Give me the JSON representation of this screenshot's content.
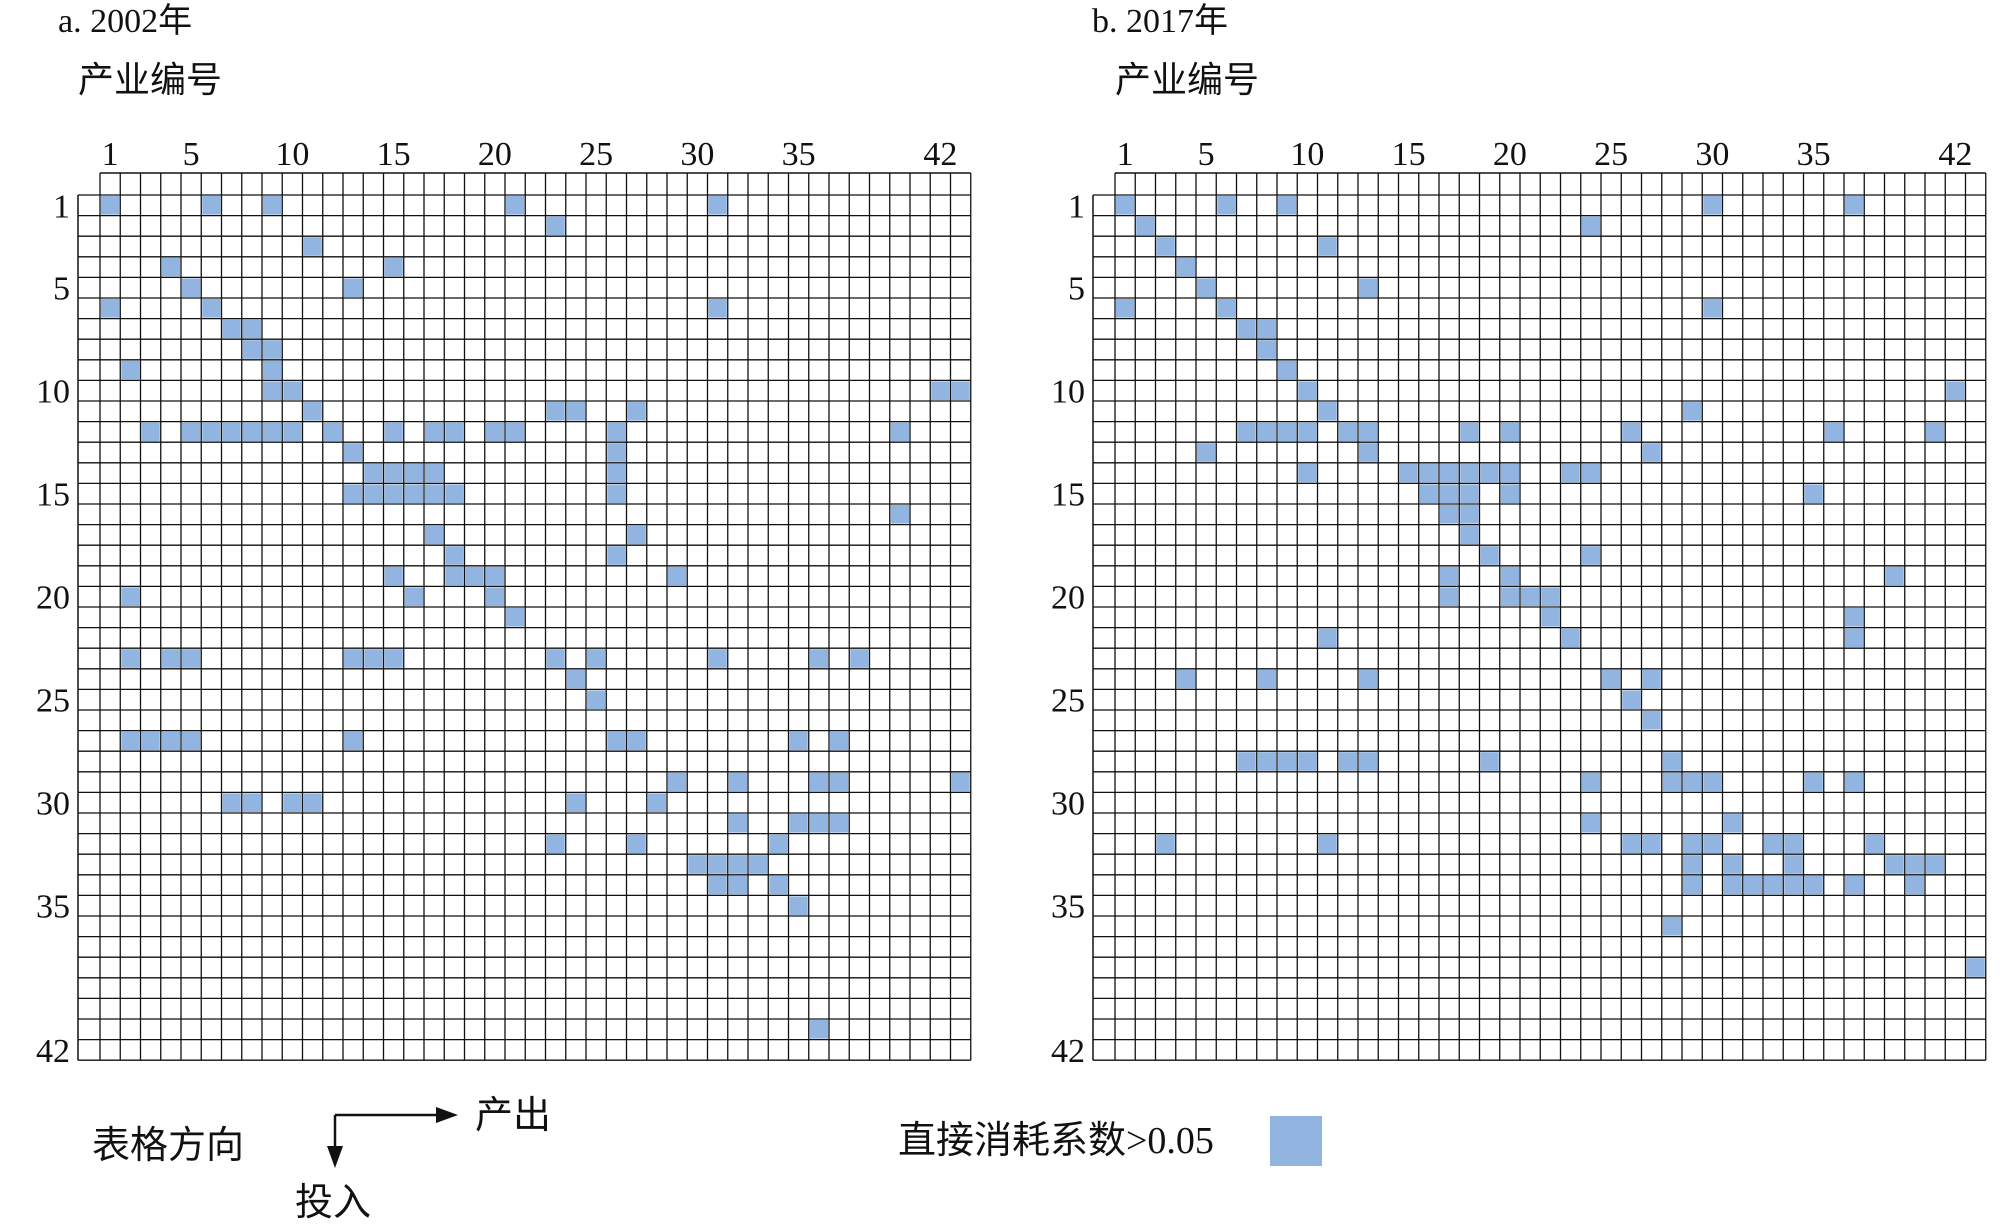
{
  "colors": {
    "filled": "#92b4e0",
    "grid": "#111111",
    "background": "#ffffff"
  },
  "legend": {
    "direction_label": "表格方向",
    "output_label": "产出",
    "input_label": "投入",
    "threshold_label": "直接消耗系数>0.05"
  },
  "chart_data": [
    {
      "type": "heatmap",
      "title": "a. 2002年",
      "axis_label": "产业编号",
      "size": 42,
      "x_tick_labels": [
        1,
        5,
        10,
        15,
        20,
        25,
        30,
        35,
        42
      ],
      "y_tick_labels": [
        1,
        5,
        10,
        15,
        20,
        25,
        30,
        35,
        42
      ],
      "cells": [
        [
          1,
          1
        ],
        [
          1,
          6
        ],
        [
          1,
          9
        ],
        [
          1,
          21
        ],
        [
          1,
          31
        ],
        [
          2,
          23
        ],
        [
          3,
          11
        ],
        [
          4,
          4
        ],
        [
          4,
          15
        ],
        [
          5,
          5
        ],
        [
          5,
          13
        ],
        [
          6,
          1
        ],
        [
          6,
          6
        ],
        [
          6,
          31
        ],
        [
          7,
          7
        ],
        [
          7,
          8
        ],
        [
          8,
          8
        ],
        [
          8,
          9
        ],
        [
          9,
          2
        ],
        [
          9,
          9
        ],
        [
          10,
          9
        ],
        [
          10,
          10
        ],
        [
          10,
          42
        ],
        [
          10,
          43
        ],
        [
          11,
          11
        ],
        [
          11,
          23
        ],
        [
          11,
          24
        ],
        [
          11,
          27
        ],
        [
          12,
          3
        ],
        [
          12,
          5
        ],
        [
          12,
          6
        ],
        [
          12,
          7
        ],
        [
          12,
          8
        ],
        [
          12,
          9
        ],
        [
          12,
          10
        ],
        [
          12,
          12
        ],
        [
          12,
          15
        ],
        [
          12,
          17
        ],
        [
          12,
          18
        ],
        [
          12,
          20
        ],
        [
          12,
          21
        ],
        [
          12,
          26
        ],
        [
          12,
          40
        ],
        [
          13,
          13
        ],
        [
          13,
          26
        ],
        [
          14,
          14
        ],
        [
          14,
          15
        ],
        [
          14,
          16
        ],
        [
          14,
          17
        ],
        [
          14,
          26
        ],
        [
          15,
          13
        ],
        [
          15,
          14
        ],
        [
          15,
          15
        ],
        [
          15,
          16
        ],
        [
          15,
          17
        ],
        [
          15,
          18
        ],
        [
          15,
          26
        ],
        [
          16,
          40
        ],
        [
          17,
          17
        ],
        [
          17,
          27
        ],
        [
          18,
          18
        ],
        [
          18,
          26
        ],
        [
          19,
          15
        ],
        [
          19,
          18
        ],
        [
          19,
          19
        ],
        [
          19,
          20
        ],
        [
          19,
          29
        ],
        [
          20,
          2
        ],
        [
          20,
          16
        ],
        [
          20,
          20
        ],
        [
          21,
          21
        ],
        [
          23,
          2
        ],
        [
          23,
          4
        ],
        [
          23,
          5
        ],
        [
          23,
          13
        ],
        [
          23,
          14
        ],
        [
          23,
          15
        ],
        [
          23,
          23
        ],
        [
          23,
          25
        ],
        [
          23,
          31
        ],
        [
          23,
          36
        ],
        [
          23,
          38
        ],
        [
          24,
          24
        ],
        [
          25,
          25
        ],
        [
          27,
          2
        ],
        [
          27,
          3
        ],
        [
          27,
          4
        ],
        [
          27,
          5
        ],
        [
          27,
          13
        ],
        [
          27,
          26
        ],
        [
          27,
          27
        ],
        [
          27,
          35
        ],
        [
          27,
          37
        ],
        [
          29,
          29
        ],
        [
          29,
          32
        ],
        [
          29,
          36
        ],
        [
          29,
          37
        ],
        [
          29,
          43
        ],
        [
          30,
          7
        ],
        [
          30,
          8
        ],
        [
          30,
          10
        ],
        [
          30,
          11
        ],
        [
          30,
          24
        ],
        [
          30,
          28
        ],
        [
          31,
          32
        ],
        [
          31,
          35
        ],
        [
          31,
          36
        ],
        [
          31,
          37
        ],
        [
          32,
          23
        ],
        [
          32,
          27
        ],
        [
          32,
          34
        ],
        [
          33,
          30
        ],
        [
          33,
          31
        ],
        [
          33,
          32
        ],
        [
          33,
          33
        ],
        [
          34,
          31
        ],
        [
          34,
          32
        ],
        [
          34,
          34
        ],
        [
          35,
          35
        ],
        [
          41,
          36
        ]
      ]
    },
    {
      "type": "heatmap",
      "title": "b. 2017年",
      "axis_label": "产业编号",
      "size": 42,
      "x_tick_labels": [
        1,
        5,
        10,
        15,
        20,
        25,
        30,
        35,
        42
      ],
      "y_tick_labels": [
        1,
        5,
        10,
        15,
        20,
        25,
        30,
        35,
        42
      ],
      "cells": [
        [
          1,
          1
        ],
        [
          1,
          6
        ],
        [
          1,
          9
        ],
        [
          1,
          30
        ],
        [
          1,
          37
        ],
        [
          2,
          2
        ],
        [
          2,
          24
        ],
        [
          3,
          3
        ],
        [
          3,
          11
        ],
        [
          4,
          4
        ],
        [
          5,
          5
        ],
        [
          5,
          13
        ],
        [
          6,
          1
        ],
        [
          6,
          6
        ],
        [
          6,
          30
        ],
        [
          7,
          7
        ],
        [
          7,
          8
        ],
        [
          8,
          8
        ],
        [
          9,
          9
        ],
        [
          10,
          10
        ],
        [
          10,
          42
        ],
        [
          11,
          11
        ],
        [
          11,
          29
        ],
        [
          12,
          7
        ],
        [
          12,
          8
        ],
        [
          12,
          9
        ],
        [
          12,
          10
        ],
        [
          12,
          12
        ],
        [
          12,
          13
        ],
        [
          12,
          18
        ],
        [
          12,
          20
        ],
        [
          12,
          26
        ],
        [
          12,
          36
        ],
        [
          12,
          41
        ],
        [
          13,
          5
        ],
        [
          13,
          13
        ],
        [
          13,
          27
        ],
        [
          14,
          10
        ],
        [
          14,
          15
        ],
        [
          14,
          16
        ],
        [
          14,
          17
        ],
        [
          14,
          18
        ],
        [
          14,
          19
        ],
        [
          14,
          20
        ],
        [
          14,
          23
        ],
        [
          14,
          24
        ],
        [
          15,
          16
        ],
        [
          15,
          17
        ],
        [
          15,
          18
        ],
        [
          15,
          20
        ],
        [
          15,
          35
        ],
        [
          16,
          17
        ],
        [
          16,
          18
        ],
        [
          17,
          18
        ],
        [
          18,
          19
        ],
        [
          18,
          24
        ],
        [
          19,
          17
        ],
        [
          19,
          20
        ],
        [
          19,
          39
        ],
        [
          20,
          17
        ],
        [
          20,
          20
        ],
        [
          20,
          21
        ],
        [
          20,
          22
        ],
        [
          21,
          22
        ],
        [
          21,
          37
        ],
        [
          22,
          11
        ],
        [
          22,
          23
        ],
        [
          22,
          37
        ],
        [
          24,
          4
        ],
        [
          24,
          8
        ],
        [
          24,
          13
        ],
        [
          24,
          25
        ],
        [
          24,
          27
        ],
        [
          25,
          26
        ],
        [
          26,
          27
        ],
        [
          28,
          7
        ],
        [
          28,
          8
        ],
        [
          28,
          9
        ],
        [
          28,
          10
        ],
        [
          28,
          12
        ],
        [
          28,
          13
        ],
        [
          28,
          19
        ],
        [
          28,
          28
        ],
        [
          29,
          24
        ],
        [
          29,
          28
        ],
        [
          29,
          29
        ],
        [
          29,
          30
        ],
        [
          29,
          35
        ],
        [
          29,
          37
        ],
        [
          31,
          31
        ],
        [
          31,
          24
        ],
        [
          32,
          3
        ],
        [
          32,
          11
        ],
        [
          32,
          26
        ],
        [
          32,
          27
        ],
        [
          32,
          29
        ],
        [
          32,
          30
        ],
        [
          32,
          33
        ],
        [
          32,
          34
        ],
        [
          32,
          38
        ],
        [
          33,
          29
        ],
        [
          33,
          31
        ],
        [
          33,
          34
        ],
        [
          33,
          39
        ],
        [
          33,
          40
        ],
        [
          33,
          41
        ],
        [
          34,
          29
        ],
        [
          34,
          31
        ],
        [
          34,
          32
        ],
        [
          34,
          33
        ],
        [
          34,
          34
        ],
        [
          34,
          35
        ],
        [
          34,
          37
        ],
        [
          34,
          40
        ],
        [
          36,
          28
        ],
        [
          38,
          43
        ]
      ]
    }
  ]
}
